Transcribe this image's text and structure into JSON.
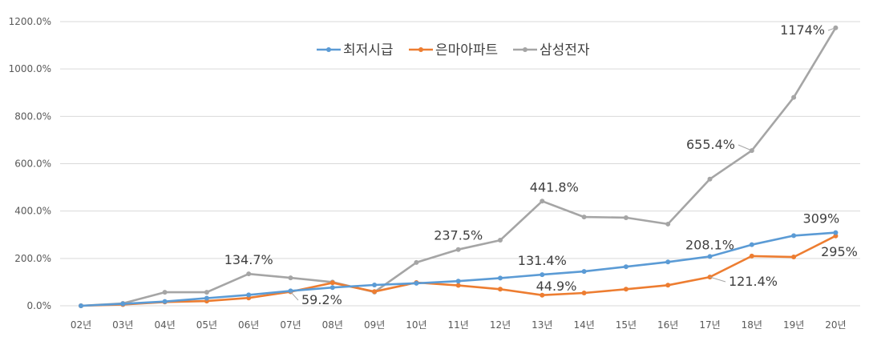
{
  "chart_data": {
    "type": "line",
    "title": "",
    "xlabel": "",
    "ylabel": "",
    "ylim": [
      0,
      1200
    ],
    "yticks": [
      0,
      200,
      400,
      600,
      800,
      1000,
      1200
    ],
    "ytick_labels": [
      "0.0%",
      "200.0%",
      "400.0%",
      "600.0%",
      "800.0%",
      "1000.0%",
      "1200.0%"
    ],
    "categories": [
      "02년",
      "03년",
      "04년",
      "05년",
      "06년",
      "07년",
      "08년",
      "09년",
      "10년",
      "11년",
      "12년",
      "13년",
      "14년",
      "15년",
      "16년",
      "17년",
      "18년",
      "19년",
      "20년"
    ],
    "legend_position": "top-center",
    "grid": true,
    "series": [
      {
        "name": "최저시급",
        "color": "#5B9BD5",
        "values": [
          0,
          8,
          18,
          32,
          46,
          63,
          77,
          88,
          95,
          104,
          117,
          131.4,
          145,
          165,
          185,
          208.1,
          258,
          296,
          309
        ]
      },
      {
        "name": "은마아파트",
        "color": "#ED7D31",
        "values": [
          0,
          5,
          16,
          20,
          33,
          59.2,
          97,
          60,
          98,
          86,
          70,
          44.9,
          54,
          70,
          87,
          121.4,
          210,
          206,
          295
        ]
      },
      {
        "name": "삼성전자",
        "color": "#A5A5A5",
        "values": [
          0,
          10,
          57,
          57,
          134.7,
          118,
          100,
          58,
          183,
          237.5,
          277,
          441.8,
          375,
          372,
          345,
          535,
          655.4,
          880,
          1174
        ]
      }
    ],
    "annotations": [
      {
        "text": "134.7%",
        "series": 2,
        "index": 4
      },
      {
        "text": "59.2%",
        "series": 1,
        "index": 5
      },
      {
        "text": "237.5%",
        "series": 2,
        "index": 9
      },
      {
        "text": "441.8%",
        "series": 2,
        "index": 11
      },
      {
        "text": "131.4%",
        "series": 0,
        "index": 11
      },
      {
        "text": "44.9%",
        "series": 1,
        "index": 11
      },
      {
        "text": "655.4%",
        "series": 2,
        "index": 16
      },
      {
        "text": "208.1%",
        "series": 0,
        "index": 15
      },
      {
        "text": "121.4%",
        "series": 1,
        "index": 15
      },
      {
        "text": "1174%",
        "series": 2,
        "index": 18
      },
      {
        "text": "309%",
        "series": 0,
        "index": 18
      },
      {
        "text": "295%",
        "series": 1,
        "index": 18
      }
    ]
  }
}
